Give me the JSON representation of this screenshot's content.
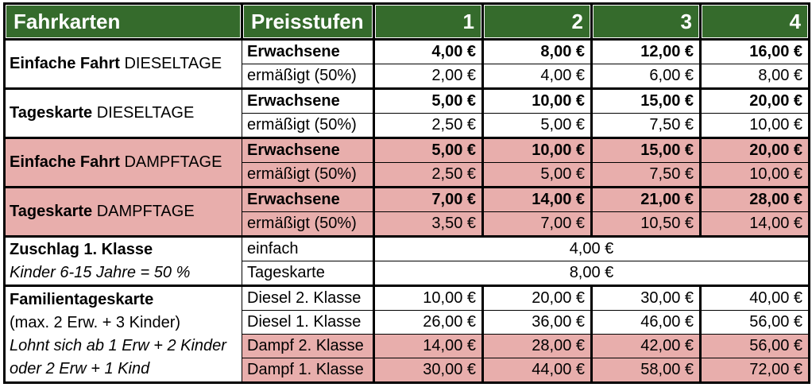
{
  "header": {
    "col_a": "Fahrkarten",
    "col_b": "Preisstufen",
    "levels": [
      "1",
      "2",
      "3",
      "4"
    ]
  },
  "groups": [
    {
      "label_bold": "Einfache Fahrt",
      "label_rest": " DIESELTAGE",
      "rows": [
        {
          "label": "Erwachsene",
          "values": [
            "4,00 €",
            "8,00 €",
            "12,00 €",
            "16,00 €"
          ]
        },
        {
          "label": "ermäßigt (50%)",
          "values": [
            "2,00 €",
            "4,00 €",
            "6,00 €",
            "8,00 €"
          ]
        }
      ]
    },
    {
      "label_bold": "Tageskarte",
      "label_rest": " DIESELTAGE",
      "rows": [
        {
          "label": "Erwachsene",
          "values": [
            "5,00 €",
            "10,00 €",
            "15,00 €",
            "20,00 €"
          ]
        },
        {
          "label": "ermäßigt (50%)",
          "values": [
            "2,50 €",
            "5,00 €",
            "7,50 €",
            "10,00 €"
          ]
        }
      ]
    },
    {
      "label_bold": "Einfache Fahrt",
      "label_rest": " DAMPFTAGE",
      "rows": [
        {
          "label": "Erwachsene",
          "values": [
            "5,00 €",
            "10,00 €",
            "15,00 €",
            "20,00 €"
          ]
        },
        {
          "label": "ermäßigt (50%)",
          "values": [
            "2,50 €",
            "5,00 €",
            "7,50 €",
            "10,00 €"
          ]
        }
      ]
    },
    {
      "label_bold": "Tageskarte",
      "label_rest": " DAMPFTAGE",
      "rows": [
        {
          "label": "Erwachsene",
          "values": [
            "7,00 €",
            "14,00 €",
            "21,00 €",
            "28,00 €"
          ]
        },
        {
          "label": "ermäßigt (50%)",
          "values": [
            "3,50 €",
            "7,00 €",
            "10,50 €",
            "14,00 €"
          ]
        }
      ]
    },
    {
      "label_line1": "Zuschlag 1. Klasse",
      "label_line2": "Kinder 6-15 Jahre = 50 %",
      "rows": [
        {
          "label": "einfach",
          "merged_value": "4,00 €"
        },
        {
          "label": "Tageskarte",
          "merged_value": "8,00 €"
        }
      ]
    },
    {
      "label_line1": "Familientageskarte",
      "label_line2": "(max. 2 Erw. + 3 Kinder)",
      "label_line3": "Lohnt sich ab 1 Erw + 2 Kinder",
      "label_line4": "oder 2 Erw + 1 Kind",
      "rows": [
        {
          "label": "Diesel 2. Klasse",
          "values": [
            "10,00 €",
            "20,00 €",
            "30,00 €",
            "40,00 €"
          ]
        },
        {
          "label": "Diesel 1. Klasse",
          "values": [
            "26,00 €",
            "36,00 €",
            "46,00 €",
            "56,00 €"
          ]
        },
        {
          "label": "Dampf 2. Klasse",
          "values": [
            "14,00 €",
            "28,00 €",
            "42,00 €",
            "56,00 €"
          ]
        },
        {
          "label": "Dampf 1. Klasse",
          "values": [
            "30,00 €",
            "44,00 €",
            "58,00 €",
            "72,00 €"
          ]
        }
      ]
    }
  ],
  "colors": {
    "header_green": "#356b2c",
    "dampf_pink": "#e8aeac"
  }
}
